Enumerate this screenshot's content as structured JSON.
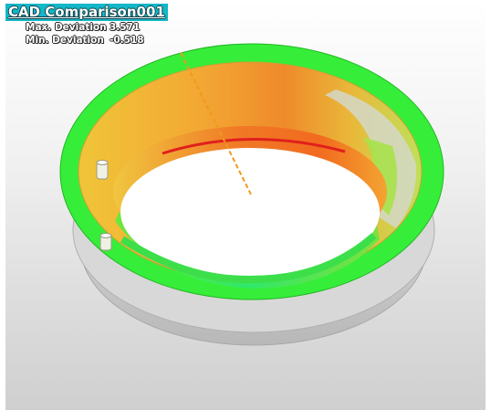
{
  "report": {
    "title": "CAD Comparison001",
    "max_label": "Max. Deviation",
    "max_value": "3.571",
    "min_label": "Min. Deviation",
    "min_value": "-0.518"
  },
  "colors": {
    "title_bg": "#12b7c8",
    "rim_green": "#33ef33",
    "inner_yellow": "#f2cc3a",
    "inner_orange": "#ee7a22",
    "edge_red": "#e0201c",
    "base_gray": "#d0d0d0",
    "probe_line": "#ef9a1a"
  }
}
